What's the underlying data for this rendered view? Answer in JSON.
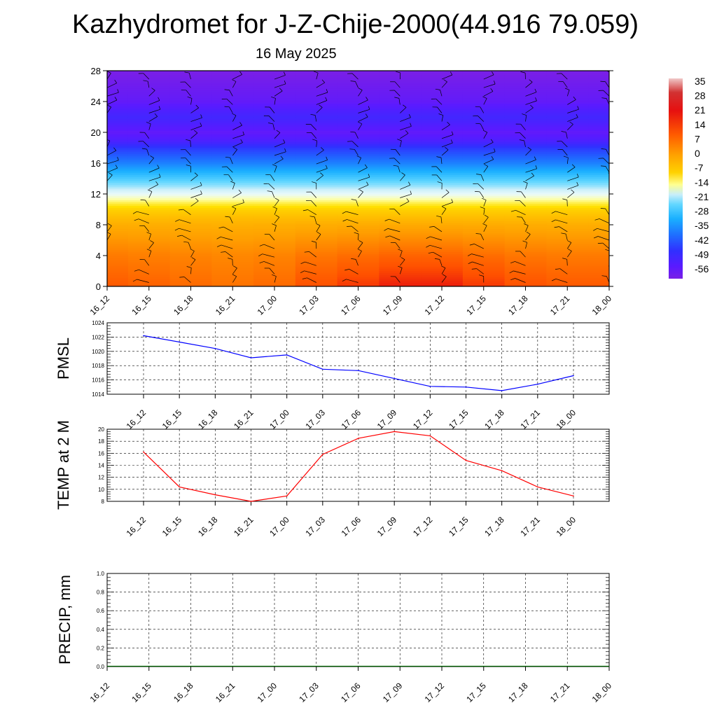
{
  "title": "Kazhydromet for J-Z-Chije-2000(44.916 79.059)",
  "subtitle": "16 May 2025",
  "time_labels": [
    "16_12",
    "16_15",
    "16_18",
    "16_21",
    "17_00",
    "17_03",
    "17_06",
    "17_09",
    "17_12",
    "17_15",
    "17_18",
    "17_21",
    "18_00"
  ],
  "chart_data": [
    {
      "type": "heatmap",
      "y_ticks": [
        0,
        4,
        8,
        12,
        16,
        20,
        24,
        28
      ],
      "ylim": [
        0,
        28
      ],
      "x": [
        "16_12",
        "16_15",
        "16_18",
        "16_21",
        "17_00",
        "17_03",
        "17_06",
        "17_09",
        "17_12",
        "17_15",
        "17_18",
        "17_21",
        "18_00"
      ],
      "colorbar_labels": [
        "35",
        "28",
        "21",
        "14",
        "7",
        "0",
        "-7",
        "-14",
        "-21",
        "-28",
        "-35",
        "-42",
        "-49",
        "-56"
      ],
      "colorbar_range": [
        -60,
        38
      ],
      "temperature_profile": [
        {
          "level": 0,
          "value": 14
        },
        {
          "level": 4,
          "value": 10
        },
        {
          "level": 8,
          "value": 3
        },
        {
          "level": 10,
          "value": -2
        },
        {
          "level": 11,
          "value": -7
        },
        {
          "level": 12,
          "value": -14
        },
        {
          "level": 13,
          "value": -24
        },
        {
          "level": 14,
          "value": -30
        },
        {
          "level": 16,
          "value": -40
        },
        {
          "level": 18,
          "value": -48
        },
        {
          "level": 19,
          "value": -54
        },
        {
          "level": 20,
          "value": -57
        },
        {
          "level": 22,
          "value": -52
        },
        {
          "level": 24,
          "value": -57
        },
        {
          "level": 28,
          "value": -60
        }
      ],
      "surface_warming": [
        0,
        -1,
        -2,
        -3,
        -2,
        1,
        3,
        5,
        5,
        3,
        1,
        0,
        0
      ],
      "wind_barbs": "present"
    },
    {
      "type": "line",
      "ylabel": "PMSL",
      "ylim": [
        1014,
        1024
      ],
      "y_ticks": [
        1014,
        1016,
        1018,
        1020,
        1022,
        1024
      ],
      "x": [
        "16_12",
        "16_15",
        "16_18",
        "16_21",
        "17_00",
        "17_03",
        "17_06",
        "17_09",
        "17_12",
        "17_15",
        "17_18",
        "17_21",
        "18_00"
      ],
      "series": [
        {
          "values": [
            1022.2,
            1021.3,
            1020.4,
            1019.1,
            1019.5,
            1017.5,
            1017.3,
            1016.2,
            1015.1,
            1015.0,
            1014.5,
            1015.4,
            1016.6
          ]
        }
      ],
      "color": "#0000ff",
      "grid": true
    },
    {
      "type": "line",
      "ylabel": "TEMP at 2 M",
      "ylim": [
        8,
        20
      ],
      "y_ticks": [
        8,
        10,
        12,
        14,
        16,
        18,
        20
      ],
      "x": [
        "16_12",
        "16_15",
        "16_18",
        "16_21",
        "17_00",
        "17_03",
        "17_06",
        "17_09",
        "17_12",
        "17_15",
        "17_18",
        "17_21",
        "18_00"
      ],
      "series": [
        {
          "values": [
            16.2,
            10.4,
            9.1,
            8.0,
            8.9,
            15.8,
            18.5,
            19.6,
            18.9,
            14.8,
            13.1,
            10.4,
            8.9
          ]
        }
      ],
      "color": "#ff0000",
      "grid": true
    },
    {
      "type": "bar",
      "ylabel": "PRECIP, mm",
      "ylim": [
        0,
        1
      ],
      "y_ticks": [
        "0.0",
        "0.2",
        "0.4",
        "0.6",
        "0.8",
        "1.0"
      ],
      "x": [
        "16_12",
        "16_15",
        "16_18",
        "16_21",
        "17_00",
        "17_03",
        "17_06",
        "17_09",
        "17_12",
        "17_15",
        "17_18",
        "17_21",
        "18_00"
      ],
      "values": [
        0,
        0,
        0,
        0,
        0,
        0,
        0,
        0,
        0,
        0,
        0,
        0,
        0
      ],
      "color": "#006400",
      "grid": true
    }
  ]
}
